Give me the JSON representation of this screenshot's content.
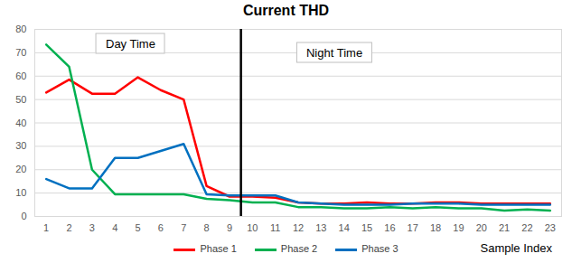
{
  "chart_data": {
    "type": "line",
    "title": "Current THD",
    "x_label": "Sample Index",
    "x": [
      1,
      2,
      3,
      4,
      5,
      6,
      7,
      8,
      9,
      10,
      11,
      12,
      13,
      14,
      15,
      16,
      17,
      18,
      19,
      20,
      21,
      22,
      23
    ],
    "xlim": [
      0.5,
      23.5
    ],
    "xticks": [
      1,
      2,
      3,
      4,
      5,
      6,
      7,
      8,
      9,
      10,
      11,
      12,
      13,
      14,
      15,
      16,
      17,
      18,
      19,
      20,
      21,
      22,
      23
    ],
    "ylim": [
      0,
      80
    ],
    "yticks": [
      0,
      10,
      20,
      30,
      40,
      50,
      60,
      70,
      80
    ],
    "grid": "y",
    "legend": "bottom",
    "series": [
      {
        "name": "Phase 1",
        "color": "#ff0000",
        "values": [
          53,
          58.5,
          52.5,
          52.5,
          59.5,
          54,
          50,
          13,
          8.5,
          8.5,
          8,
          6,
          5.5,
          5.5,
          6,
          5.5,
          5.5,
          6,
          6,
          5.5,
          5.5,
          5.5,
          5.5
        ]
      },
      {
        "name": "Phase 2",
        "color": "#00b050",
        "values": [
          73.5,
          64,
          20,
          9.5,
          9.5,
          9.5,
          9.5,
          7.5,
          7,
          6,
          6,
          4,
          4,
          3.5,
          3.5,
          4,
          3.5,
          4,
          3.5,
          3.5,
          2.5,
          3,
          2.5
        ]
      },
      {
        "name": "Phase 3",
        "color": "#0070c0",
        "values": [
          16,
          12,
          12,
          25,
          25,
          28,
          31,
          9.5,
          9,
          9,
          9,
          6,
          5.5,
          5,
          5,
          5,
          5.5,
          5.5,
          5.5,
          5,
          5,
          5,
          5
        ]
      }
    ],
    "divider_x": 9.5,
    "annotations": [
      {
        "text": "Day Time",
        "x": 4.7,
        "y": 74
      },
      {
        "text": "Night Time",
        "x": 13.6,
        "y": 70
      }
    ]
  }
}
